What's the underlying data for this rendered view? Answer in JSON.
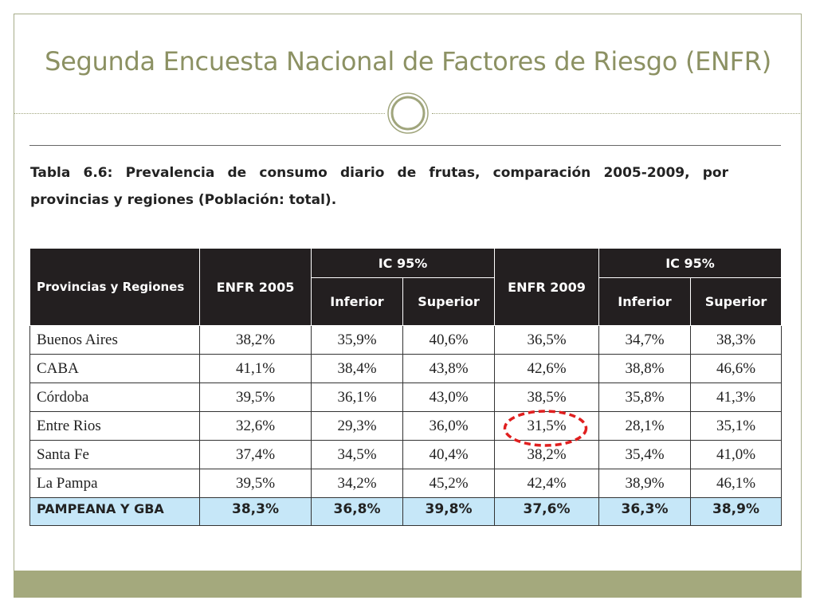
{
  "title": "Segunda Encuesta Nacional de Factores de Riesgo (ENFR)",
  "caption": "Tabla 6.6: Prevalencia de consumo diario de frutas, comparación 2005-2009, por provincias y regiones (Población: total).",
  "table": {
    "headers": {
      "region": "Provincias y Regiones",
      "enfr2005": "ENFR 2005",
      "ic1": "IC 95%",
      "enfr2009": "ENFR 2009",
      "ic2": "IC 95%",
      "inferior": "Inferior",
      "superior": "Superior"
    },
    "rows": [
      {
        "name": "Buenos Aires",
        "v2005": "38,2%",
        "inf2005": "35,9%",
        "sup2005": "40,6%",
        "v2009": "36,5%",
        "inf2009": "34,7%",
        "sup2009": "38,3%"
      },
      {
        "name": "CABA",
        "v2005": "41,1%",
        "inf2005": "38,4%",
        "sup2005": "43,8%",
        "v2009": "42,6%",
        "inf2009": "38,8%",
        "sup2009": "46,6%"
      },
      {
        "name": "Córdoba",
        "v2005": "39,5%",
        "inf2005": "36,1%",
        "sup2005": "43,0%",
        "v2009": "38,5%",
        "inf2009": "35,8%",
        "sup2009": "41,3%"
      },
      {
        "name": "Entre Rios",
        "v2005": "32,6%",
        "inf2005": "29,3%",
        "sup2005": "36,0%",
        "v2009": "31,5%",
        "inf2009": "28,1%",
        "sup2009": "35,1%"
      },
      {
        "name": "Santa Fe",
        "v2005": "37,4%",
        "inf2005": "34,5%",
        "sup2005": "40,4%",
        "v2009": "38,2%",
        "inf2009": "35,4%",
        "sup2009": "41,0%"
      },
      {
        "name": "La Pampa",
        "v2005": "39,5%",
        "inf2005": "34,2%",
        "sup2005": "45,2%",
        "v2009": "42,4%",
        "inf2009": "38,9%",
        "sup2009": "46,1%"
      }
    ],
    "total": {
      "name": "PAMPEANA Y GBA",
      "v2005": "38,3%",
      "inf2005": "36,8%",
      "sup2005": "39,8%",
      "v2009": "37,6%",
      "inf2009": "36,3%",
      "sup2009": "38,9%"
    }
  },
  "colors": {
    "title": "#8c9163",
    "header_bg": "#231f20",
    "total_row_bg": "#c6e7f8",
    "highlight_ring": "#e01f1f",
    "footer_band": "#a4a97d"
  }
}
